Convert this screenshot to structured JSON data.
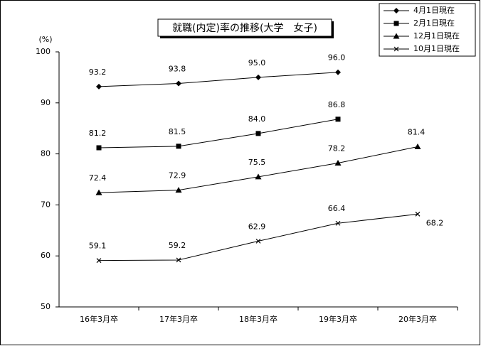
{
  "chart_data": {
    "type": "line",
    "title": "就職(内定)率の推移(大学　女子)",
    "y_label": "(%)",
    "categories": [
      "16年3月卒",
      "17年3月卒",
      "18年3月卒",
      "19年3月卒",
      "20年3月卒"
    ],
    "series": [
      {
        "name": "4月1日現在",
        "color": "#000000",
        "marker": "diamond",
        "values": [
          93.2,
          93.8,
          95.0,
          96.0,
          null
        ],
        "value_labels": [
          "93.2",
          "93.8",
          "95.0",
          "96.0",
          null
        ]
      },
      {
        "name": "2月1日現在",
        "color": "#000000",
        "marker": "square",
        "values": [
          81.2,
          81.5,
          84.0,
          86.8,
          null
        ],
        "value_labels": [
          "81.2",
          "81.5",
          "84.0",
          "86.8",
          null
        ]
      },
      {
        "name": "12月1日現在",
        "color": "#000000",
        "marker": "triangle",
        "values": [
          72.4,
          72.9,
          75.5,
          78.2,
          81.4
        ],
        "value_labels": [
          "72.4",
          "72.9",
          "75.5",
          "78.2",
          "81.4"
        ]
      },
      {
        "name": "10月1日現在",
        "color": "#000000",
        "marker": "cross",
        "values": [
          59.1,
          59.2,
          62.9,
          66.4,
          68.2
        ],
        "value_labels": [
          "59.1",
          "59.2",
          "62.9",
          "66.4",
          "68.2"
        ]
      }
    ],
    "ylim": [
      50,
      100
    ],
    "yticks": [
      50,
      60,
      70,
      80,
      90,
      100
    ],
    "grid": false,
    "legend": "upper right"
  }
}
